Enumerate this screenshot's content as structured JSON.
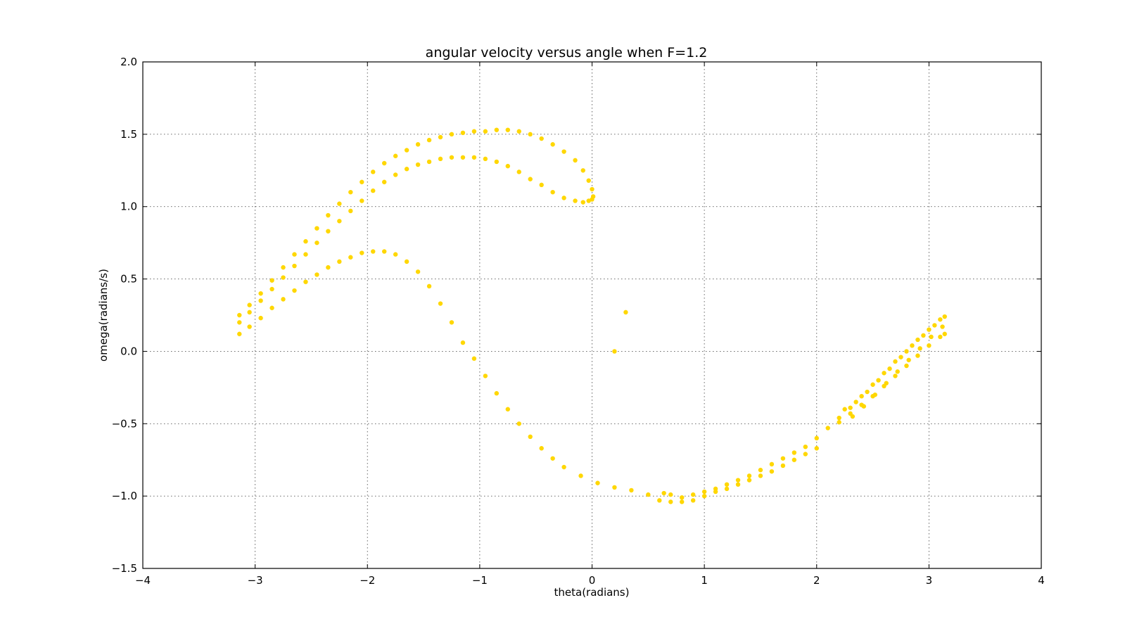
{
  "chart_data": {
    "type": "scatter",
    "title": "angular velocity versus angle when F=1.2",
    "xlabel": "theta(radians)",
    "ylabel": "omega(radians/s)",
    "xlim": [
      -4,
      4
    ],
    "ylim": [
      -1.5,
      2.0
    ],
    "grid": true,
    "marker_color": "#FFD700",
    "xticks": [
      -4,
      -3,
      -2,
      -1,
      0,
      1,
      2,
      3,
      4
    ],
    "yticks": [
      -1.5,
      -1.0,
      -0.5,
      0.0,
      0.5,
      1.0,
      1.5,
      2.0
    ],
    "xtick_labels": [
      "−4",
      "−3",
      "−2",
      "−1",
      "0",
      "1",
      "2",
      "3",
      "4"
    ],
    "ytick_labels": [
      "−1.5",
      "−1.0",
      "−0.5",
      "0.0",
      "0.5",
      "1.0",
      "1.5",
      "2.0"
    ],
    "series": [
      {
        "points": [
          [
            -3.14,
            0.12
          ],
          [
            -3.05,
            0.17
          ],
          [
            -2.95,
            0.23
          ],
          [
            -2.85,
            0.3
          ],
          [
            -2.75,
            0.36
          ],
          [
            -2.65,
            0.42
          ],
          [
            -2.55,
            0.48
          ],
          [
            -2.45,
            0.53
          ],
          [
            -2.35,
            0.58
          ],
          [
            -2.25,
            0.62
          ],
          [
            -2.15,
            0.65
          ],
          [
            -2.05,
            0.68
          ],
          [
            -1.95,
            0.69
          ],
          [
            -1.85,
            0.69
          ],
          [
            -1.75,
            0.67
          ],
          [
            -1.65,
            0.62
          ],
          [
            -1.55,
            0.55
          ],
          [
            -1.45,
            0.45
          ],
          [
            -1.35,
            0.33
          ],
          [
            -1.25,
            0.2
          ],
          [
            -1.15,
            0.06
          ],
          [
            -1.05,
            -0.05
          ],
          [
            -0.95,
            -0.17
          ],
          [
            -0.85,
            -0.29
          ],
          [
            -0.75,
            -0.4
          ],
          [
            -0.65,
            -0.5
          ],
          [
            -0.55,
            -0.59
          ],
          [
            -0.45,
            -0.67
          ],
          [
            -0.35,
            -0.74
          ],
          [
            -0.25,
            -0.8
          ],
          [
            -0.1,
            -0.86
          ],
          [
            0.05,
            -0.91
          ],
          [
            0.2,
            -0.94
          ],
          [
            0.35,
            -0.96
          ],
          [
            0.5,
            -0.99
          ],
          [
            0.6,
            -1.03
          ],
          [
            0.7,
            -1.04
          ],
          [
            0.8,
            -1.04
          ],
          [
            0.9,
            -1.03
          ],
          [
            1.0,
            -1.0
          ],
          [
            1.1,
            -0.97
          ],
          [
            0.64,
            -0.98
          ],
          [
            0.7,
            -0.99
          ],
          [
            0.8,
            -1.01
          ],
          [
            0.9,
            -0.99
          ],
          [
            1.0,
            -0.97
          ],
          [
            1.1,
            -0.95
          ],
          [
            1.2,
            -0.92
          ],
          [
            1.3,
            -0.89
          ],
          [
            1.4,
            -0.86
          ],
          [
            1.5,
            -0.82
          ],
          [
            1.6,
            -0.78
          ],
          [
            1.7,
            -0.74
          ],
          [
            1.8,
            -0.7
          ],
          [
            1.9,
            -0.66
          ],
          [
            2.0,
            -0.6
          ],
          [
            2.1,
            -0.53
          ],
          [
            2.2,
            -0.46
          ],
          [
            2.3,
            -0.39
          ],
          [
            2.4,
            -0.31
          ],
          [
            2.5,
            -0.23
          ],
          [
            2.6,
            -0.15
          ],
          [
            2.7,
            -0.07
          ],
          [
            2.8,
            0.0
          ],
          [
            2.9,
            0.08
          ],
          [
            3.0,
            0.15
          ],
          [
            3.1,
            0.22
          ],
          [
            3.14,
            0.24
          ],
          [
            1.2,
            -0.95
          ],
          [
            1.3,
            -0.92
          ],
          [
            1.4,
            -0.89
          ],
          [
            1.5,
            -0.86
          ],
          [
            1.6,
            -0.83
          ],
          [
            1.7,
            -0.79
          ],
          [
            1.8,
            -0.75
          ],
          [
            1.9,
            -0.71
          ],
          [
            2.0,
            -0.67
          ],
          [
            2.2,
            -0.49
          ],
          [
            2.3,
            -0.43
          ],
          [
            2.4,
            -0.37
          ],
          [
            2.5,
            -0.31
          ],
          [
            2.6,
            -0.24
          ],
          [
            2.7,
            -0.17
          ],
          [
            2.8,
            -0.1
          ],
          [
            2.9,
            -0.03
          ],
          [
            3.0,
            0.04
          ],
          [
            3.1,
            0.1
          ],
          [
            3.14,
            0.12
          ],
          [
            2.25,
            -0.4
          ],
          [
            2.35,
            -0.35
          ],
          [
            2.45,
            -0.28
          ],
          [
            2.55,
            -0.2
          ],
          [
            2.65,
            -0.12
          ],
          [
            2.75,
            -0.04
          ],
          [
            2.85,
            0.04
          ],
          [
            2.95,
            0.11
          ],
          [
            3.05,
            0.18
          ],
          [
            2.32,
            -0.45
          ],
          [
            2.42,
            -0.38
          ],
          [
            2.52,
            -0.3
          ],
          [
            2.62,
            -0.22
          ],
          [
            2.72,
            -0.14
          ],
          [
            2.82,
            -0.06
          ],
          [
            2.92,
            0.02
          ],
          [
            3.02,
            0.1
          ],
          [
            3.12,
            0.17
          ],
          [
            -3.14,
            0.2
          ],
          [
            -3.05,
            0.27
          ],
          [
            -2.95,
            0.35
          ],
          [
            -2.85,
            0.43
          ],
          [
            -2.75,
            0.51
          ],
          [
            -2.65,
            0.59
          ],
          [
            -2.55,
            0.67
          ],
          [
            -2.45,
            0.75
          ],
          [
            -2.35,
            0.83
          ],
          [
            -2.25,
            0.9
          ],
          [
            -2.15,
            0.97
          ],
          [
            -2.05,
            1.04
          ],
          [
            -1.95,
            1.11
          ],
          [
            -1.85,
            1.17
          ],
          [
            -1.75,
            1.22
          ],
          [
            -1.65,
            1.26
          ],
          [
            -1.55,
            1.29
          ],
          [
            -1.45,
            1.31
          ],
          [
            -1.35,
            1.33
          ],
          [
            -1.25,
            1.34
          ],
          [
            -1.15,
            1.34
          ],
          [
            -1.05,
            1.34
          ],
          [
            -0.95,
            1.33
          ],
          [
            -0.85,
            1.31
          ],
          [
            -0.75,
            1.28
          ],
          [
            -0.65,
            1.24
          ],
          [
            -0.55,
            1.19
          ],
          [
            -0.45,
            1.15
          ],
          [
            -0.35,
            1.1
          ],
          [
            -0.25,
            1.06
          ],
          [
            -0.15,
            1.04
          ],
          [
            -0.08,
            1.03
          ],
          [
            -0.03,
            1.04
          ],
          [
            -3.14,
            0.25
          ],
          [
            -3.05,
            0.32
          ],
          [
            -2.95,
            0.4
          ],
          [
            -2.85,
            0.49
          ],
          [
            -2.75,
            0.58
          ],
          [
            -2.65,
            0.67
          ],
          [
            -2.55,
            0.76
          ],
          [
            -2.45,
            0.85
          ],
          [
            -2.35,
            0.94
          ],
          [
            -2.25,
            1.02
          ],
          [
            -2.15,
            1.1
          ],
          [
            -2.05,
            1.17
          ],
          [
            -1.95,
            1.24
          ],
          [
            -1.85,
            1.3
          ],
          [
            -1.75,
            1.35
          ],
          [
            -1.65,
            1.39
          ],
          [
            -1.55,
            1.43
          ],
          [
            -1.45,
            1.46
          ],
          [
            -1.35,
            1.48
          ],
          [
            -1.25,
            1.5
          ],
          [
            -1.15,
            1.51
          ],
          [
            -1.05,
            1.52
          ],
          [
            -0.95,
            1.52
          ],
          [
            -0.85,
            1.53
          ],
          [
            -0.75,
            1.53
          ],
          [
            -0.65,
            1.52
          ],
          [
            -0.55,
            1.5
          ],
          [
            -0.45,
            1.47
          ],
          [
            -0.35,
            1.43
          ],
          [
            -0.25,
            1.38
          ],
          [
            -0.15,
            1.32
          ],
          [
            -0.08,
            1.25
          ],
          [
            -0.03,
            1.18
          ],
          [
            0.0,
            1.12
          ],
          [
            0.01,
            1.07
          ],
          [
            0.0,
            1.05
          ],
          [
            0.3,
            0.27
          ],
          [
            0.2,
            0.0
          ]
        ]
      }
    ]
  }
}
